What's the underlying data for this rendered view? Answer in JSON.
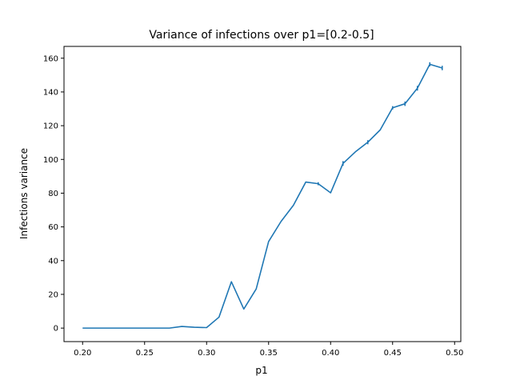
{
  "chart_data": {
    "type": "line",
    "title": "Variance of infections over p1=[0.2-0.5]",
    "xlabel": "p1",
    "ylabel": "Infections variance",
    "xlim": [
      0.185,
      0.505
    ],
    "ylim": [
      -8,
      167
    ],
    "xticks": [
      0.2,
      0.25,
      0.3,
      0.35,
      0.4,
      0.45,
      0.5
    ],
    "xtick_labels": [
      "0.20",
      "0.25",
      "0.30",
      "0.35",
      "0.40",
      "0.45",
      "0.50"
    ],
    "yticks": [
      0,
      20,
      40,
      60,
      80,
      100,
      120,
      140,
      160
    ],
    "ytick_labels": [
      "0",
      "20",
      "40",
      "60",
      "80",
      "100",
      "120",
      "140",
      "160"
    ],
    "grid": false,
    "color": "#1f77b4",
    "series": [
      {
        "x": [
          0.2,
          0.21,
          0.22,
          0.23,
          0.24,
          0.25,
          0.26,
          0.27,
          0.28,
          0.29,
          0.3,
          0.31,
          0.32,
          0.33,
          0.34,
          0.35,
          0.36,
          0.37,
          0.38,
          0.39,
          0.4,
          0.41,
          0.42,
          0.43,
          0.44,
          0.45,
          0.46,
          0.47,
          0.48,
          0.49
        ],
        "y": [
          0,
          0,
          0,
          0,
          0,
          0,
          0,
          0,
          1.0,
          0.5,
          0.3,
          6.5,
          27.5,
          11.3,
          23.2,
          51.3,
          63.2,
          72.8,
          86.6,
          85.6,
          80.2,
          97.6,
          104.5,
          110.2,
          117.5,
          130.6,
          133.0,
          142.2,
          156.4,
          154.2
        ],
        "err": [
          0,
          0,
          0,
          0,
          0,
          0,
          0,
          0,
          0,
          0,
          0,
          0,
          0,
          0,
          0,
          0,
          0,
          0,
          0,
          0.9,
          0,
          1.4,
          0,
          1.2,
          0,
          1.0,
          1.3,
          1.4,
          1.2,
          1.3
        ]
      }
    ]
  }
}
